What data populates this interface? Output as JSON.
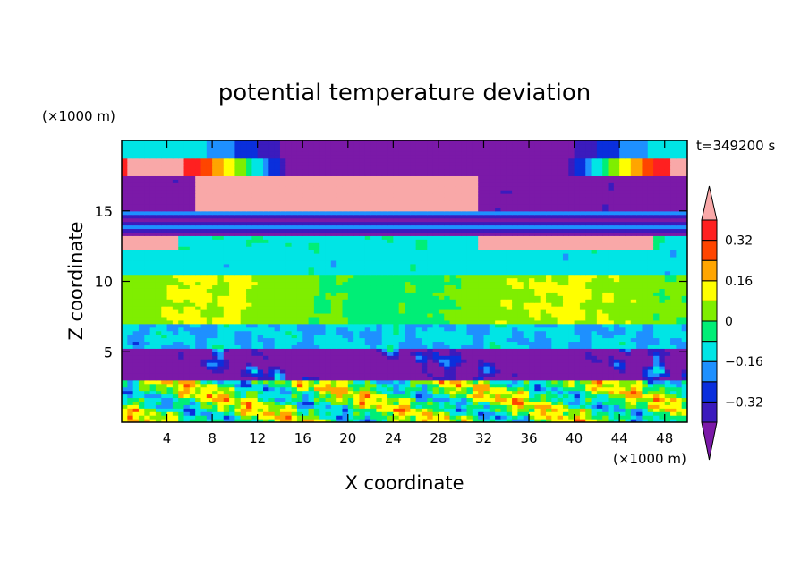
{
  "chart_data": {
    "type": "heatmap",
    "title": "potential temperature deviation",
    "xlabel": "X coordinate",
    "ylabel": "Z coordinate",
    "x_unit": "(×1000 m)",
    "y_unit": "(×1000 m)",
    "time_label": "t=349200 s",
    "xlim": [
      0,
      50
    ],
    "ylim": [
      0,
      20
    ],
    "x_ticks": [
      "4",
      "8",
      "12",
      "16",
      "20",
      "24",
      "28",
      "32",
      "36",
      "40",
      "44",
      "48"
    ],
    "x_tick_values": [
      4,
      8,
      12,
      16,
      20,
      24,
      28,
      32,
      36,
      40,
      44,
      48
    ],
    "y_ticks": [
      "5",
      "10",
      "15"
    ],
    "y_tick_values": [
      5,
      10,
      15
    ],
    "colorbar": {
      "levels": [
        -0.4,
        -0.32,
        -0.24,
        -0.16,
        -0.08,
        0,
        0.08,
        0.16,
        0.24,
        0.32,
        0.4
      ],
      "tick_labels": [
        "0.32",
        "0.16",
        "0",
        "−0.16",
        "−0.32"
      ],
      "tick_values": [
        0.32,
        0.16,
        0,
        -0.16,
        -0.32
      ],
      "colors": [
        "#7b19a8",
        "#3b1bbd",
        "#0a2fdc",
        "#1e90ff",
        "#00e5e5",
        "#00ee76",
        "#7fee00",
        "#ffff00",
        "#ffa500",
        "#ff4500",
        "#ff2020",
        "#f9a8a8"
      ]
    }
  }
}
